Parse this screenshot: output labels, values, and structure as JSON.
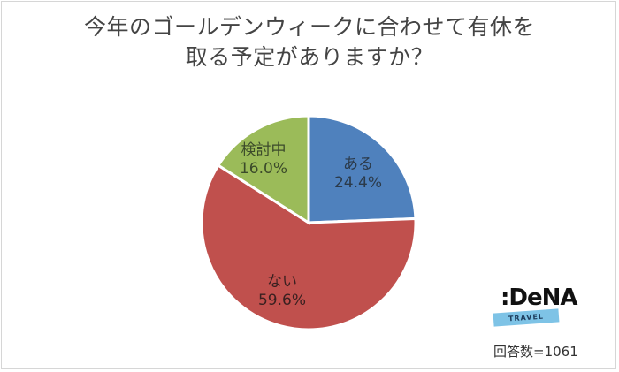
{
  "title": {
    "line1": "今年のゴールデンウィークに合わせて有休を",
    "line2": "取る予定がありますか？"
  },
  "chart_data": {
    "type": "pie",
    "title": "今年のゴールデンウィークに合わせて有休を取る予定がありますか？",
    "categories": [
      "ある",
      "ない",
      "検討中"
    ],
    "values": [
      24.4,
      59.6,
      16.0
    ],
    "unit": "%",
    "colors": [
      "#4f81bd",
      "#c0504d",
      "#9bbb59"
    ],
    "start_angle": "12 o'clock, clockwise",
    "legend": "none (data labels inside slices)",
    "note": "回答数=1061"
  },
  "labels": [
    {
      "name": "ある",
      "pct": "24.4%"
    },
    {
      "name": "ない",
      "pct": "59.6%"
    },
    {
      "name": "検討中",
      "pct": "16.0%"
    }
  ],
  "logo": {
    "brand": ":DeNA",
    "sub": "TRAVEL"
  },
  "footer": {
    "respondents": "回答数=1061"
  }
}
